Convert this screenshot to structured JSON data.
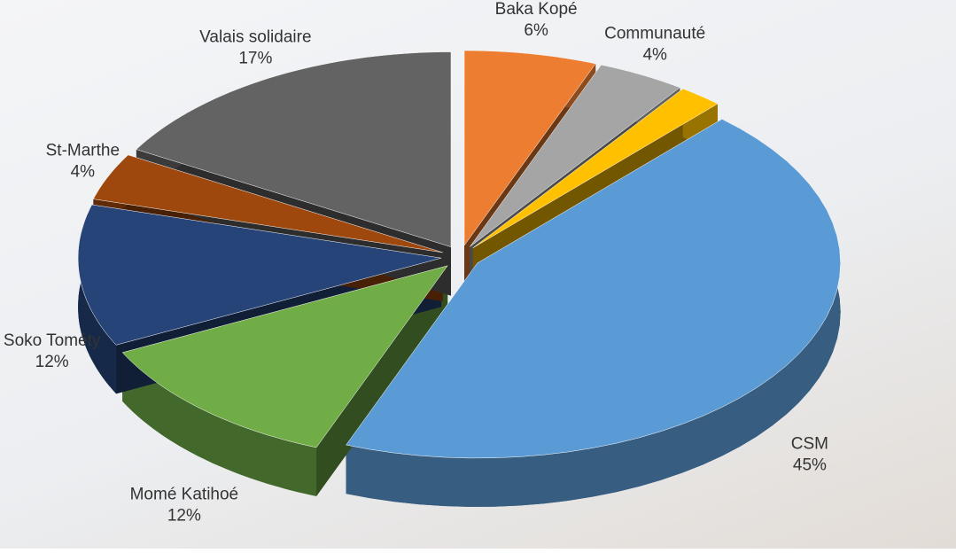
{
  "chart_data": {
    "type": "pie",
    "categories": [
      "Baka Kopé",
      "Communauté",
      null,
      "CSM",
      "Momé Katihoé",
      "Soko Tométy",
      "St-Marthe",
      "Valais solidaire"
    ],
    "values": [
      6,
      4,
      2,
      45,
      12,
      12,
      4,
      17
    ],
    "value_labels": [
      "6%",
      "4%",
      null,
      "45%",
      "12%",
      "12%",
      "4%",
      "17%"
    ],
    "colors": [
      "#ed7d31",
      "#a5a5a5",
      "#ffc000",
      "#5b9bd5",
      "#70ad47",
      "#264478",
      "#9e480e",
      "#636363"
    ]
  }
}
